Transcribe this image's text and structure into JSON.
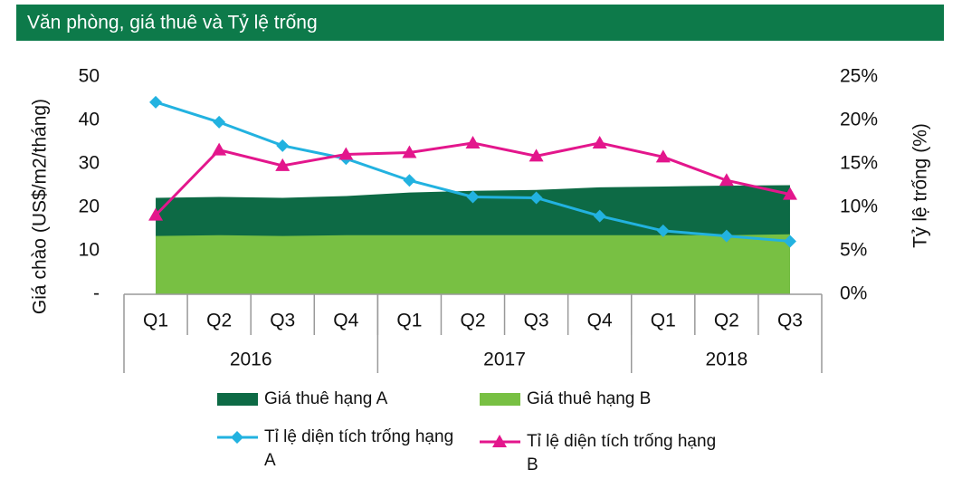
{
  "chart_data": {
    "type": "combo",
    "title": "Văn phòng, giá thuê và Tỷ lệ trống",
    "y_label": "Giá chào (US$/m2/tháng)",
    "y2_label": "Tỷ lệ trống (%)",
    "category_groups": [
      {
        "name": "2016",
        "categories": [
          "Q1",
          "Q2",
          "Q3",
          "Q4"
        ]
      },
      {
        "name": "2017",
        "categories": [
          "Q1",
          "Q2",
          "Q3",
          "Q4"
        ]
      },
      {
        "name": "2018",
        "categories": [
          "Q1",
          "Q2",
          "Q3"
        ]
      }
    ],
    "ylim": [
      0,
      50
    ],
    "yticks": [
      {
        "value": 0,
        "label": "-"
      },
      10,
      20,
      30,
      40,
      50
    ],
    "y2lim": [
      0,
      25
    ],
    "y2ticks": [
      {
        "value": 0,
        "label": "0%"
      },
      {
        "value": 5,
        "label": "5%"
      },
      {
        "value": 10,
        "label": "10%"
      },
      {
        "value": 15,
        "label": "15%"
      },
      {
        "value": 20,
        "label": "20%"
      },
      {
        "value": 25,
        "label": "25%"
      }
    ],
    "series": [
      {
        "name": "Giá thuê hạng A",
        "type": "area",
        "color": "#0d6a45",
        "values": [
          22.2,
          22.4,
          22.2,
          22.6,
          23.4,
          23.8,
          24.0,
          24.6,
          24.8,
          25.0,
          25.1
        ]
      },
      {
        "name": "Giá thuê hạng B",
        "type": "area",
        "color": "#78c043",
        "values": [
          13.4,
          13.6,
          13.4,
          13.6,
          13.6,
          13.6,
          13.6,
          13.6,
          13.6,
          13.6,
          13.8
        ]
      },
      {
        "name": "Tỉ lệ diện tích trống hạng A",
        "type": "line",
        "axis": "y2",
        "marker": "diamond",
        "color": "#22b2e0",
        "values": [
          22.1,
          19.8,
          17.1,
          15.6,
          13.1,
          11.2,
          11.1,
          9.0,
          7.3,
          6.7,
          6.1
        ]
      },
      {
        "name": "Tỉ lệ diện tích trống hạng B",
        "type": "line",
        "axis": "y2",
        "marker": "triangle",
        "color": "#e3168c",
        "values": [
          9.1,
          16.6,
          14.8,
          16.1,
          16.3,
          17.4,
          15.9,
          17.4,
          15.8,
          13.1,
          11.5
        ]
      }
    ]
  }
}
